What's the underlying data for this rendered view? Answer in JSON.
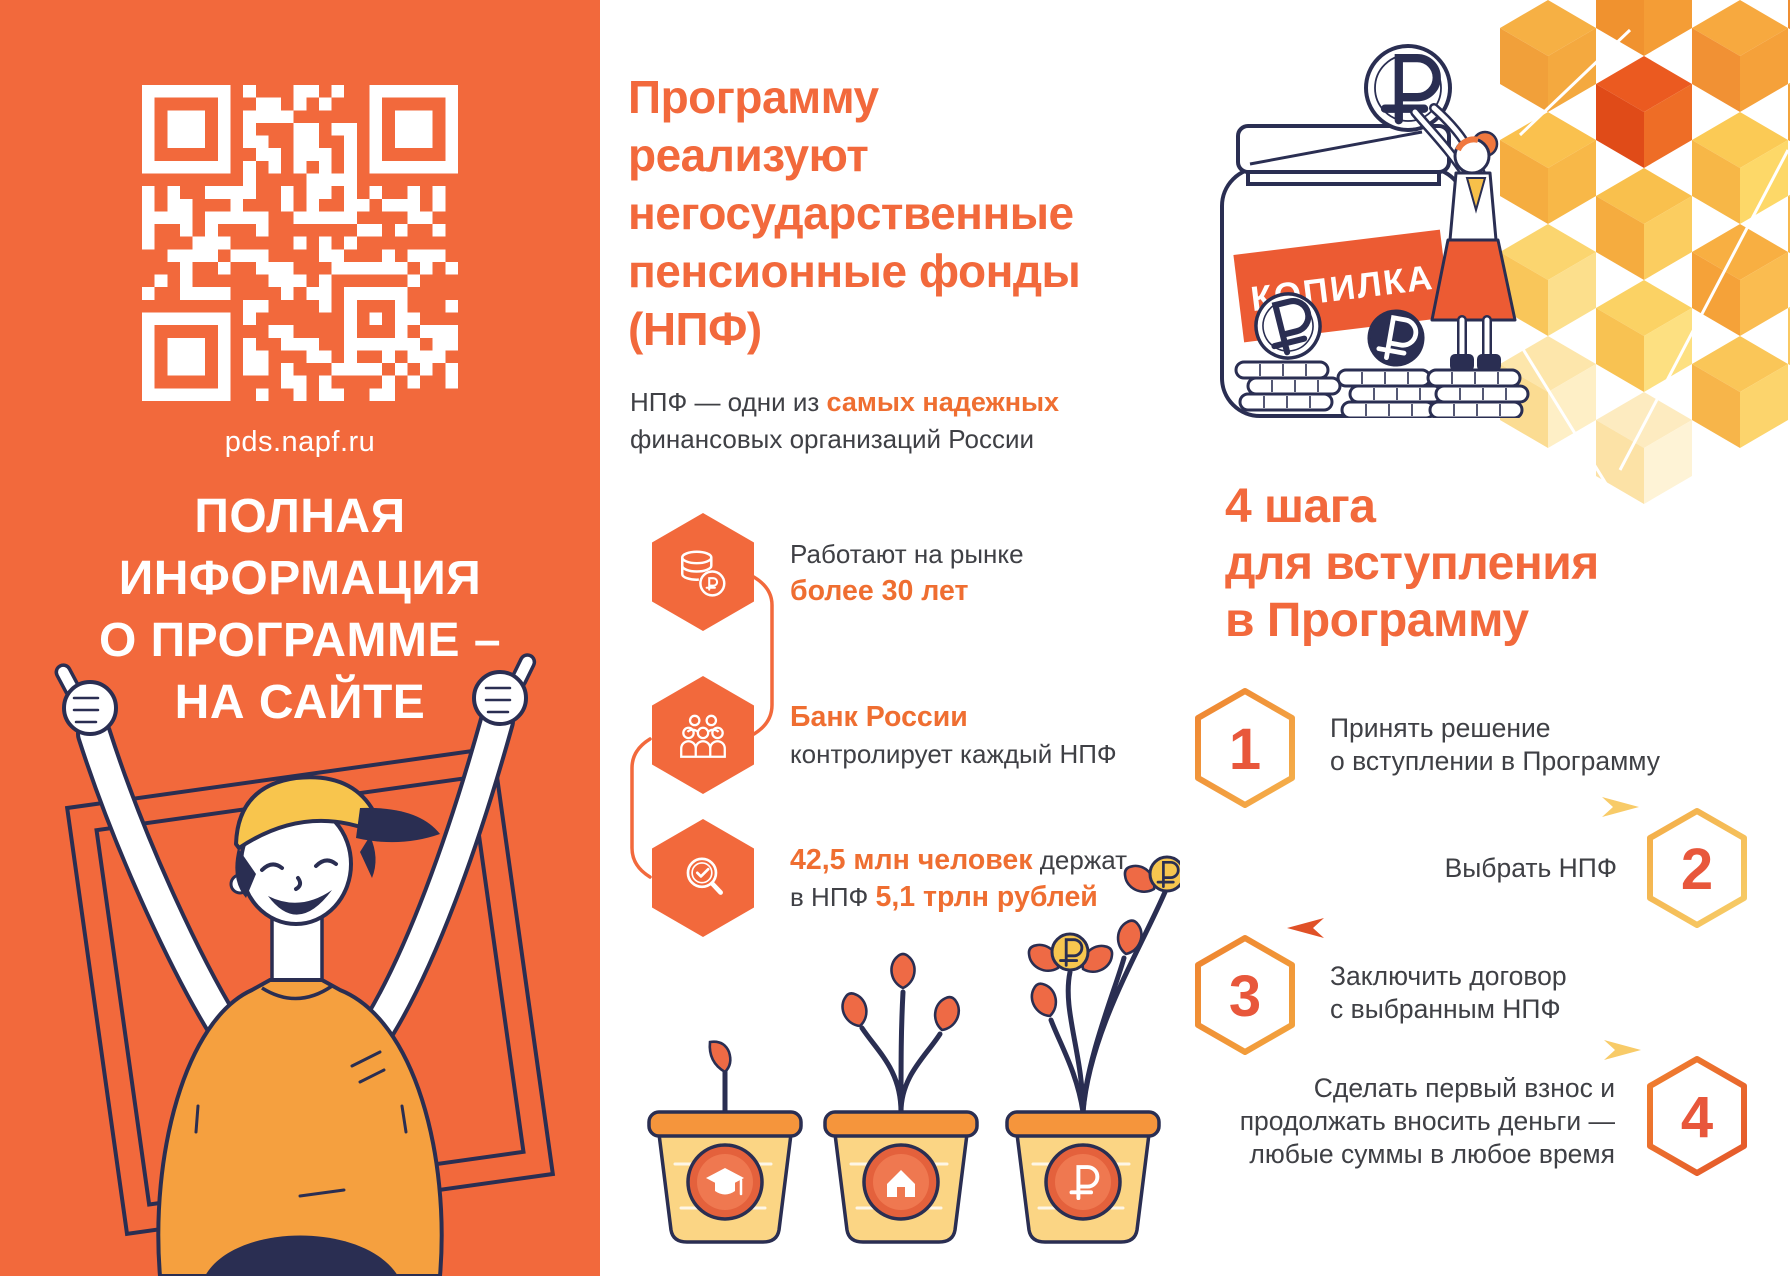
{
  "colors": {
    "orange": "#F2693C",
    "orange_text": "#EF6E31",
    "deep_orange": "#E8573B",
    "navy": "#2A2E52",
    "yellow": "#F7C04A",
    "dark_text": "#3F4045"
  },
  "left_panel": {
    "qr_caption": "pds.napf.ru",
    "headline_lines": [
      "ПОЛНАЯ",
      "ИНФОРМАЦИЯ",
      "О ПРОГРАММЕ –",
      "НА САЙТЕ"
    ]
  },
  "middle": {
    "heading_lines": [
      "Программу",
      "реализуют",
      "негосударственные",
      "пенсионные фонды",
      "(НПФ)"
    ],
    "intro": {
      "plain1": "НПФ — одни из ",
      "bold": "самых надежных",
      "plain2": "финансовых организаций России"
    },
    "facts": [
      {
        "line1": "Работают на рынке",
        "line2": "более 30 лет"
      },
      {
        "line1": "Банк России",
        "line2": "контролирует каждый НПФ"
      },
      {
        "l1_bold": "42,5 млн человек",
        "l1_plain": " держат",
        "l2_plain": "в НПФ ",
        "l2_bold": "5,1 трлн рублей"
      }
    ]
  },
  "right": {
    "jar_label": "КОПИЛКА",
    "heading_lines": [
      "4 шага",
      "для вступления",
      "в Программу"
    ],
    "steps": [
      {
        "num": "1",
        "lines": [
          "Принять решение",
          "о вступлении в Программу"
        ]
      },
      {
        "num": "2",
        "lines": [
          "Выбрать НПФ"
        ]
      },
      {
        "num": "3",
        "lines": [
          "Заключить договор",
          "с выбранным НПФ"
        ]
      },
      {
        "num": "4",
        "lines": [
          "Сделать первый взнос и",
          "продолжать вносить деньги —",
          "любые суммы в любое время"
        ]
      }
    ]
  }
}
